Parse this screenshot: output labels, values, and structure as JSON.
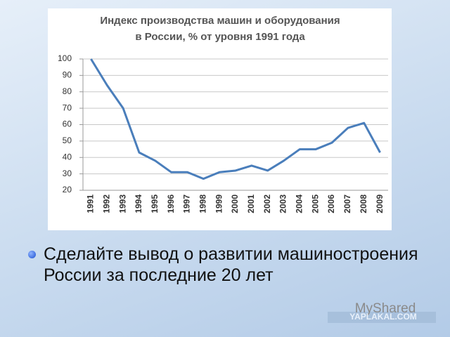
{
  "chart_data": {
    "type": "line",
    "title": "Индекс производства машин и оборудования",
    "subtitle": "в России, % от уровня 1991 года",
    "categories": [
      "1991",
      "1992",
      "1993",
      "1994",
      "1995",
      "1996",
      "1997",
      "1998",
      "1999",
      "2000",
      "2001",
      "2002",
      "2003",
      "2004",
      "2005",
      "2006",
      "2007",
      "2008",
      "2009"
    ],
    "values": [
      100,
      84,
      70,
      43,
      38,
      31,
      31,
      27,
      31,
      32,
      35,
      32,
      38,
      45,
      45,
      49,
      58,
      61,
      43
    ],
    "color": "#4a7ebb",
    "ylim": [
      20,
      100
    ],
    "yticks": [
      20,
      30,
      40,
      50,
      60,
      70,
      80,
      90,
      100
    ],
    "grid": true
  },
  "bullet": "Сделайте вывод о развитии машиностроения России за последние 20 лет",
  "watermarks": [
    "MyShared",
    "YAPLAKAL.COM"
  ]
}
